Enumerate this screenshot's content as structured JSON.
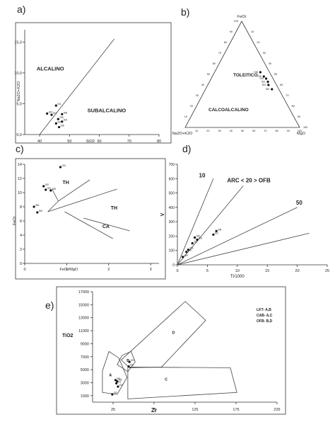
{
  "panel_letters": [
    "a)",
    "b)",
    "c)",
    "d)",
    "e)"
  ],
  "chart_data": [
    {
      "panel": "a)",
      "type": "scatter",
      "title": "",
      "xlabel": "SiO2",
      "ylabel": "Na2O+K2O",
      "xlim": [
        35,
        80
      ],
      "ylim": [
        0,
        17
      ],
      "x_ticks": [
        "40",
        "50",
        "60",
        "70",
        "80"
      ],
      "y_ticks": [
        "0,0",
        "5,0",
        "10,0",
        "15,0"
      ],
      "field_labels": [
        "ALCALINO",
        "SUBALCALINO"
      ],
      "boundary": {
        "x": [
          40,
          65
        ],
        "y": [
          0,
          15.5
        ]
      },
      "points": [
        {
          "label": "SI1",
          "x": 45.5,
          "y": 4.7
        },
        {
          "label": "SI4",
          "x": 42.5,
          "y": 3.4
        },
        {
          "label": "SI3",
          "x": 44.0,
          "y": 3.2
        },
        {
          "label": "SI8",
          "x": 47.5,
          "y": 3.3
        },
        {
          "label": "SI5",
          "x": 46.2,
          "y": 2.5
        },
        {
          "label": "SI9",
          "x": 47.5,
          "y": 2.1
        },
        {
          "label": "SI2",
          "x": 45.5,
          "y": 1.8
        },
        {
          "label": "SI6",
          "x": 46.5,
          "y": 1.2
        }
      ]
    },
    {
      "panel": "b)",
      "type": "scatter",
      "subtype": "ternary",
      "title": "",
      "vertices": [
        "FeOt",
        "Na2O+K2O",
        "MgO"
      ],
      "tick_labels": [
        "10",
        "20",
        "30",
        "40",
        "50",
        "60",
        "70",
        "80",
        "90",
        "100"
      ],
      "field_labels": [
        "TOLEITICO",
        "CALCOALCALINO"
      ],
      "points": [
        {
          "label": "SI8",
          "FeOt": 52,
          "Alk": 8,
          "MgO": 40
        },
        {
          "label": "SI5",
          "FeOt": 48,
          "Alk": 7,
          "MgO": 45
        },
        {
          "label": "SI4",
          "FeOt": 46,
          "Alk": 6,
          "MgO": 48
        },
        {
          "label": "SI2",
          "FeOt": 43,
          "Alk": 6,
          "MgO": 51
        },
        {
          "label": "SI3",
          "FeOt": 40,
          "Alk": 7,
          "MgO": 53
        },
        {
          "label": "SI6",
          "FeOt": 36,
          "Alk": 6,
          "MgO": 58
        }
      ]
    },
    {
      "panel": "c)",
      "type": "scatter",
      "title": "",
      "xlabel": "FeOt/MgO",
      "ylabel": "FeOt",
      "xlim": [
        0,
        3.2
      ],
      "ylim": [
        0,
        14
      ],
      "x_ticks": [
        "0",
        "1",
        "2",
        "3"
      ],
      "y_ticks": [
        "0",
        "2",
        "4",
        "6",
        "8",
        "10",
        "12",
        "14"
      ],
      "field_labels": [
        "TH",
        "TH",
        "CA"
      ],
      "boundaries": [
        {
          "x": [
            0.55,
            0.8,
            1.55
          ],
          "y": [
            7.3,
            8.8,
            11.8
          ]
        },
        {
          "x": [
            0.8,
            0.65
          ],
          "y": [
            8.8,
            10.5
          ]
        },
        {
          "x": [
            0.55,
            2.2
          ],
          "y": [
            7.3,
            10.5
          ]
        },
        {
          "x": [
            0.95,
            2.1
          ],
          "y": [
            7.3,
            3.5
          ]
        },
        {
          "x": [
            1.4,
            2.5
          ],
          "y": [
            6.4,
            4.6
          ]
        }
      ],
      "points": [
        {
          "label": "SI4",
          "x": 0.85,
          "y": 13.6
        },
        {
          "label": "SI2",
          "x": 0.45,
          "y": 10.9
        },
        {
          "label": "SI3",
          "x": 0.5,
          "y": 10.4
        },
        {
          "label": "SI5",
          "x": 0.62,
          "y": 10.3
        },
        {
          "label": "SI8",
          "x": 0.22,
          "y": 8.0
        },
        {
          "label": "SI6",
          "x": 0.3,
          "y": 7.2
        }
      ]
    },
    {
      "panel": "d)",
      "type": "scatter",
      "title": "",
      "xlabel": "Ti/1000",
      "ylabel": "V",
      "xlim": [
        0,
        25
      ],
      "ylim": [
        0,
        700
      ],
      "x_ticks": [
        "0",
        "5",
        "10",
        "15",
        "20",
        "25"
      ],
      "y_ticks": [
        "0",
        "100",
        "200",
        "300",
        "400",
        "500",
        "600",
        "700"
      ],
      "annotations": [
        "10",
        "ARC < 20 > OFB",
        "50"
      ],
      "reference_lines": [
        {
          "ratio": "10",
          "x": [
            0,
            6
          ],
          "y": [
            0,
            600
          ]
        },
        {
          "ratio": "20",
          "x": [
            0,
            11
          ],
          "y": [
            0,
            550
          ]
        },
        {
          "ratio": "50",
          "x": [
            0,
            20
          ],
          "y": [
            0,
            400
          ]
        },
        {
          "ratio": "100",
          "x": [
            0,
            22
          ],
          "y": [
            0,
            220
          ]
        }
      ],
      "points": [
        {
          "label": "SI8",
          "x": 6.5,
          "y": 235
        },
        {
          "label": "SI1",
          "x": 6.0,
          "y": 210
        },
        {
          "label": "SI6",
          "x": 2.9,
          "y": 190
        },
        {
          "label": "SI3",
          "x": 3.3,
          "y": 175
        },
        {
          "label": "SI2",
          "x": 2.5,
          "y": 150
        },
        {
          "label": "SI9",
          "x": 1.8,
          "y": 105
        },
        {
          "label": "SI5",
          "x": 1.5,
          "y": 90
        },
        {
          "label": "SI4",
          "x": 0.9,
          "y": 55
        }
      ]
    },
    {
      "panel": "e)",
      "type": "scatter",
      "title": "",
      "xlabel": "Zr",
      "ylabel": "TiO2",
      "xlim": [
        0,
        225
      ],
      "ylim": [
        0,
        17000
      ],
      "x_ticks": [
        "25",
        "75",
        "125",
        "175",
        "225"
      ],
      "y_ticks": [
        "1000",
        "3000",
        "5000",
        "7000",
        "9000",
        "11000",
        "13000",
        "15000",
        "17000"
      ],
      "legend": [
        "LKT- A,B",
        "CAB- A,C",
        "OFB- B,D"
      ],
      "legend_position": "top-right",
      "fields": [
        {
          "label": "A",
          "x": [
            12,
            30,
            42,
            32,
            20,
            12
          ],
          "y": [
            1500,
            1200,
            3800,
            6800,
            7800,
            4800
          ]
        },
        {
          "label": "B",
          "x": [
            30,
            43,
            52,
            47,
            36
          ],
          "y": [
            5800,
            4700,
            6200,
            7800,
            7200
          ]
        },
        {
          "label": "C",
          "x": [
            43,
            176,
            168,
            43
          ],
          "y": [
            500,
            1500,
            5300,
            5400
          ]
        },
        {
          "label": "D",
          "x": [
            35,
            113,
            138,
            84,
            45
          ],
          "y": [
            6500,
            15500,
            12600,
            5400,
            5300
          ]
        }
      ],
      "points": [
        {
          "label": "SI8",
          "x": 28,
          "y": 3400
        },
        {
          "label": "SI5",
          "x": 30,
          "y": 3200
        },
        {
          "label": "SI1",
          "x": 29,
          "y": 2900
        },
        {
          "label": "SI3",
          "x": 31,
          "y": 2400
        },
        {
          "label": "SI9",
          "x": 24,
          "y": 1200
        },
        {
          "label": "SI2",
          "x": 45,
          "y": 6200
        },
        {
          "label": "SI4",
          "x": 44,
          "y": 5500
        }
      ]
    }
  ]
}
